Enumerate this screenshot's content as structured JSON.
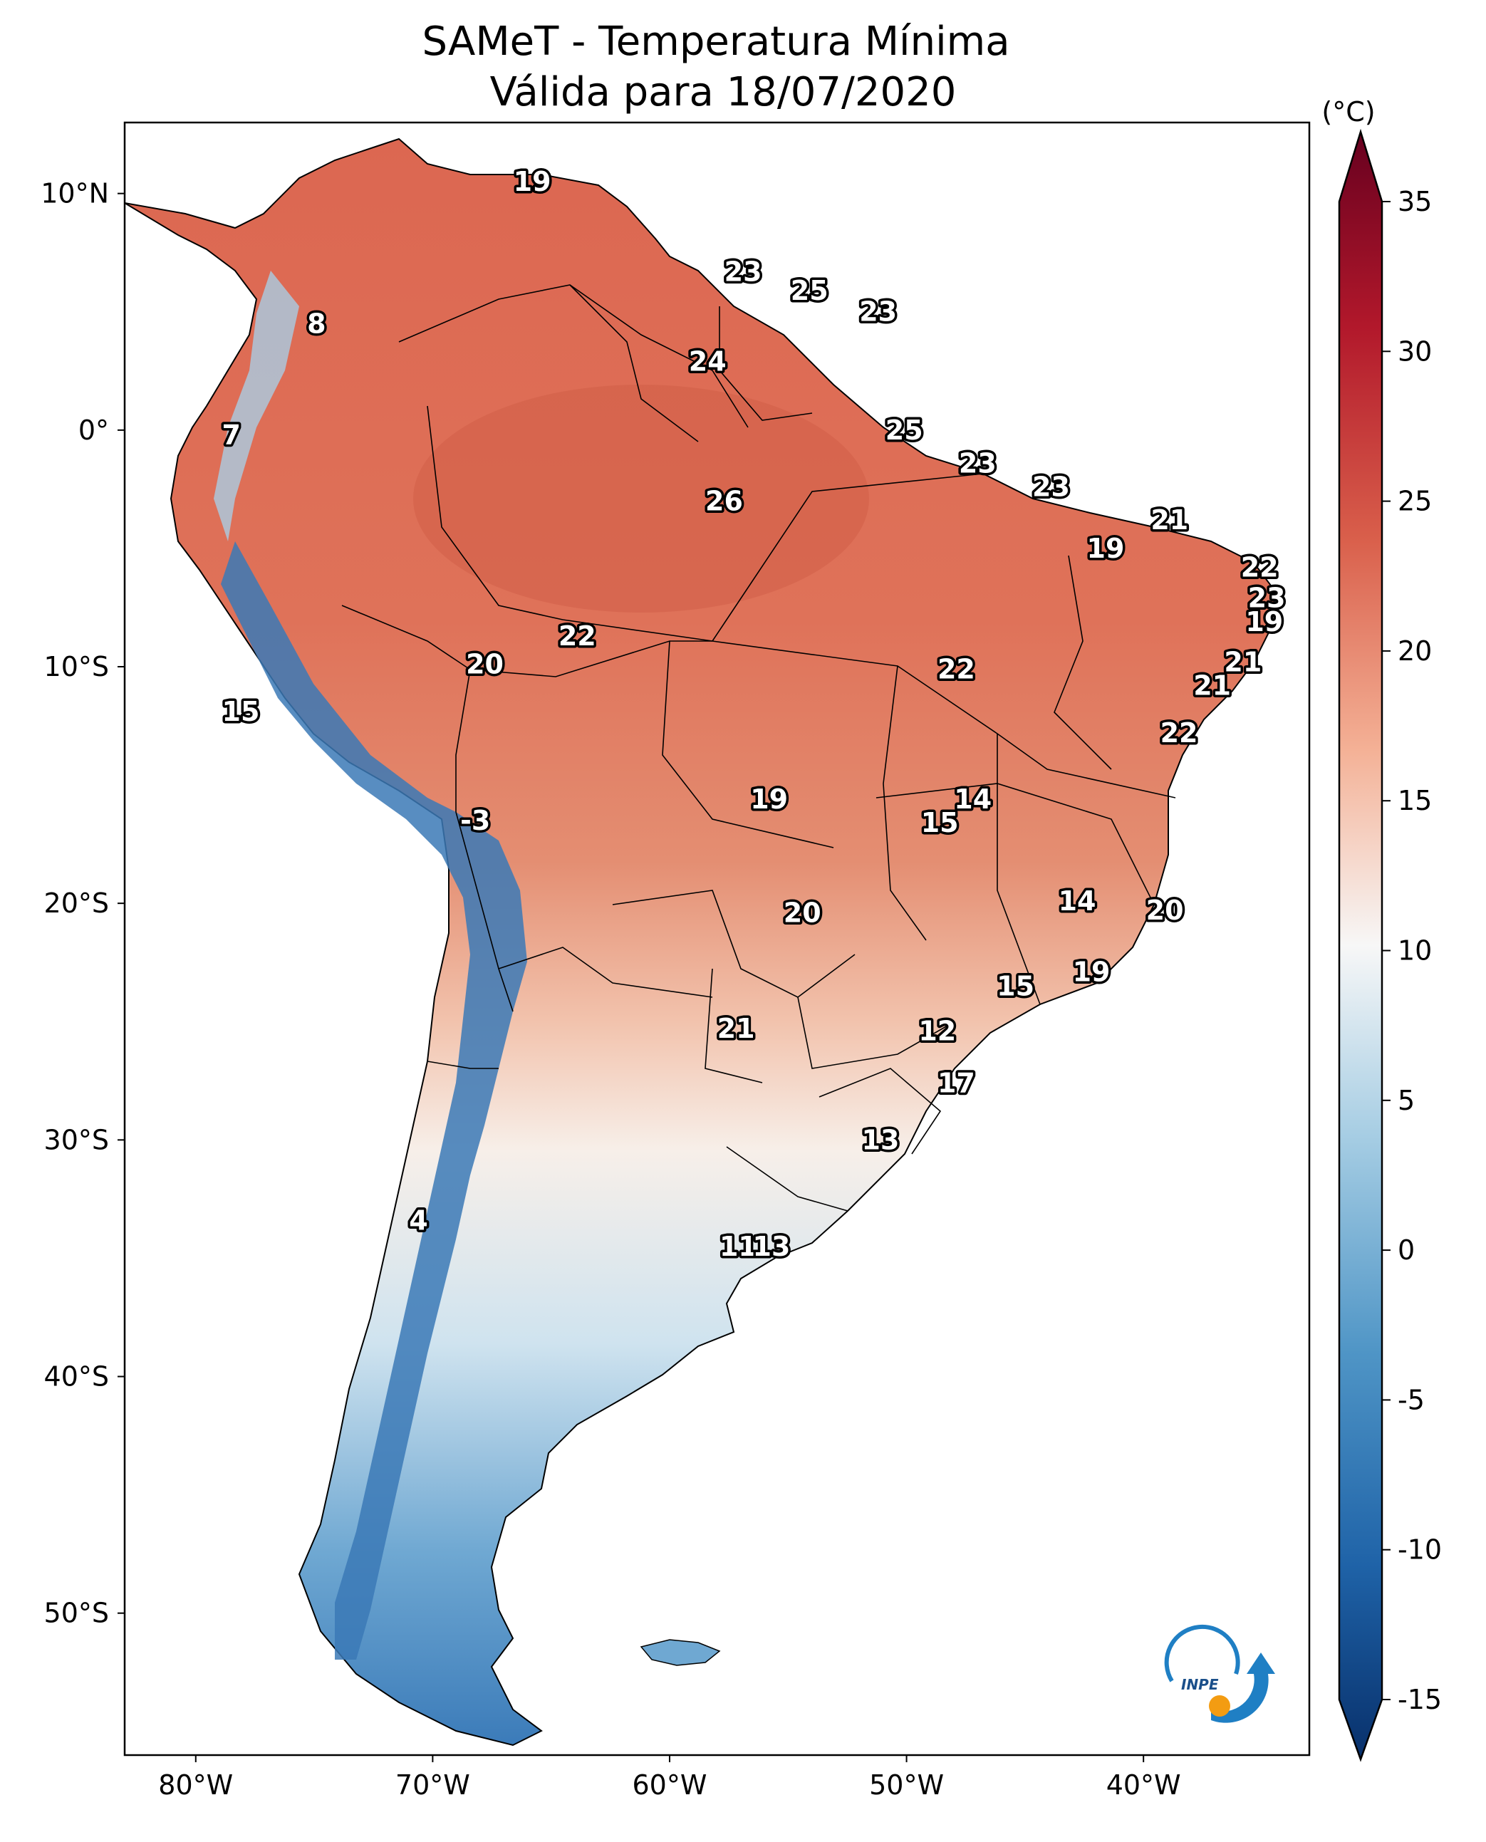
{
  "title": {
    "line1": "SAMeT - Temperatura Mínima",
    "line2": "Válida para 18/07/2020"
  },
  "map": {
    "lon_range": [
      -83,
      -33
    ],
    "lat_range": [
      -56,
      13
    ],
    "lon_ticks": [
      {
        "value": -80,
        "label": "80°W"
      },
      {
        "value": -70,
        "label": "70°W"
      },
      {
        "value": -60,
        "label": "60°W"
      },
      {
        "value": -50,
        "label": "50°W"
      },
      {
        "value": -40,
        "label": "40°W"
      }
    ],
    "lat_ticks": [
      {
        "value": 10,
        "label": "10°N"
      },
      {
        "value": 0,
        "label": "0°"
      },
      {
        "value": -10,
        "label": "10°S"
      },
      {
        "value": -20,
        "label": "20°S"
      },
      {
        "value": -30,
        "label": "30°S"
      },
      {
        "value": -40,
        "label": "40°S"
      },
      {
        "value": -50,
        "label": "50°S"
      }
    ],
    "station_labels": [
      {
        "lon": -65.8,
        "lat": 10.5,
        "text": "19"
      },
      {
        "lon": -56.9,
        "lat": 6.7,
        "text": "23"
      },
      {
        "lon": -54.1,
        "lat": 5.9,
        "text": "25"
      },
      {
        "lon": -51.2,
        "lat": 5.0,
        "text": "23"
      },
      {
        "lon": -58.4,
        "lat": 2.9,
        "text": "24"
      },
      {
        "lon": -50.1,
        "lat": 0.0,
        "text": "25"
      },
      {
        "lon": -47.0,
        "lat": -1.4,
        "text": "23"
      },
      {
        "lon": -43.9,
        "lat": -2.4,
        "text": "23"
      },
      {
        "lon": -38.9,
        "lat": -3.8,
        "text": "21"
      },
      {
        "lon": -41.6,
        "lat": -5.0,
        "text": "19"
      },
      {
        "lon": -57.7,
        "lat": -3.0,
        "text": "26"
      },
      {
        "lon": -35.1,
        "lat": -5.8,
        "text": "22"
      },
      {
        "lon": -34.8,
        "lat": -7.1,
        "text": "23"
      },
      {
        "lon": -34.9,
        "lat": -8.1,
        "text": "19"
      },
      {
        "lon": -35.8,
        "lat": -9.8,
        "text": "21"
      },
      {
        "lon": -37.1,
        "lat": -10.8,
        "text": "21"
      },
      {
        "lon": -38.5,
        "lat": -12.8,
        "text": "22"
      },
      {
        "lon": -47.9,
        "lat": -10.1,
        "text": "22"
      },
      {
        "lon": -63.9,
        "lat": -8.7,
        "text": "22"
      },
      {
        "lon": -67.8,
        "lat": -9.9,
        "text": "20"
      },
      {
        "lon": -78.1,
        "lat": -11.9,
        "text": "15"
      },
      {
        "lon": -68.2,
        "lat": -16.5,
        "text": "-3"
      },
      {
        "lon": -55.8,
        "lat": -15.6,
        "text": "19"
      },
      {
        "lon": -47.2,
        "lat": -15.6,
        "text": "14"
      },
      {
        "lon": -48.6,
        "lat": -16.6,
        "text": "15"
      },
      {
        "lon": -54.4,
        "lat": -20.4,
        "text": "20"
      },
      {
        "lon": -42.8,
        "lat": -19.9,
        "text": "14"
      },
      {
        "lon": -39.1,
        "lat": -20.3,
        "text": "20"
      },
      {
        "lon": -42.2,
        "lat": -22.9,
        "text": "19"
      },
      {
        "lon": -45.4,
        "lat": -23.5,
        "text": "15"
      },
      {
        "lon": -57.2,
        "lat": -25.3,
        "text": "21"
      },
      {
        "lon": -48.7,
        "lat": -25.4,
        "text": "12"
      },
      {
        "lon": -47.9,
        "lat": -27.6,
        "text": "17"
      },
      {
        "lon": -51.1,
        "lat": -30.0,
        "text": "13"
      },
      {
        "lon": -57.1,
        "lat": -34.5,
        "text": "11"
      },
      {
        "lon": -55.7,
        "lat": -34.5,
        "text": "13"
      },
      {
        "lon": -70.6,
        "lat": -33.4,
        "text": "4"
      },
      {
        "lon": -74.9,
        "lat": 4.5,
        "text": "8"
      },
      {
        "lon": -78.5,
        "lat": -0.2,
        "text": "7"
      }
    ],
    "logo_text": "INPE"
  },
  "colorbar": {
    "unit": "(°C)",
    "range": [
      -15,
      35
    ],
    "ticks": [
      "35",
      "30",
      "25",
      "20",
      "15",
      "10",
      "5",
      "0",
      "-5",
      "-10",
      "-15"
    ],
    "colors": [
      "#08306b",
      "#1f63a8",
      "#4f95c6",
      "#a4cce3",
      "#f7f7f7",
      "#f4b196",
      "#d95f4b",
      "#b2182b",
      "#67001f"
    ]
  }
}
